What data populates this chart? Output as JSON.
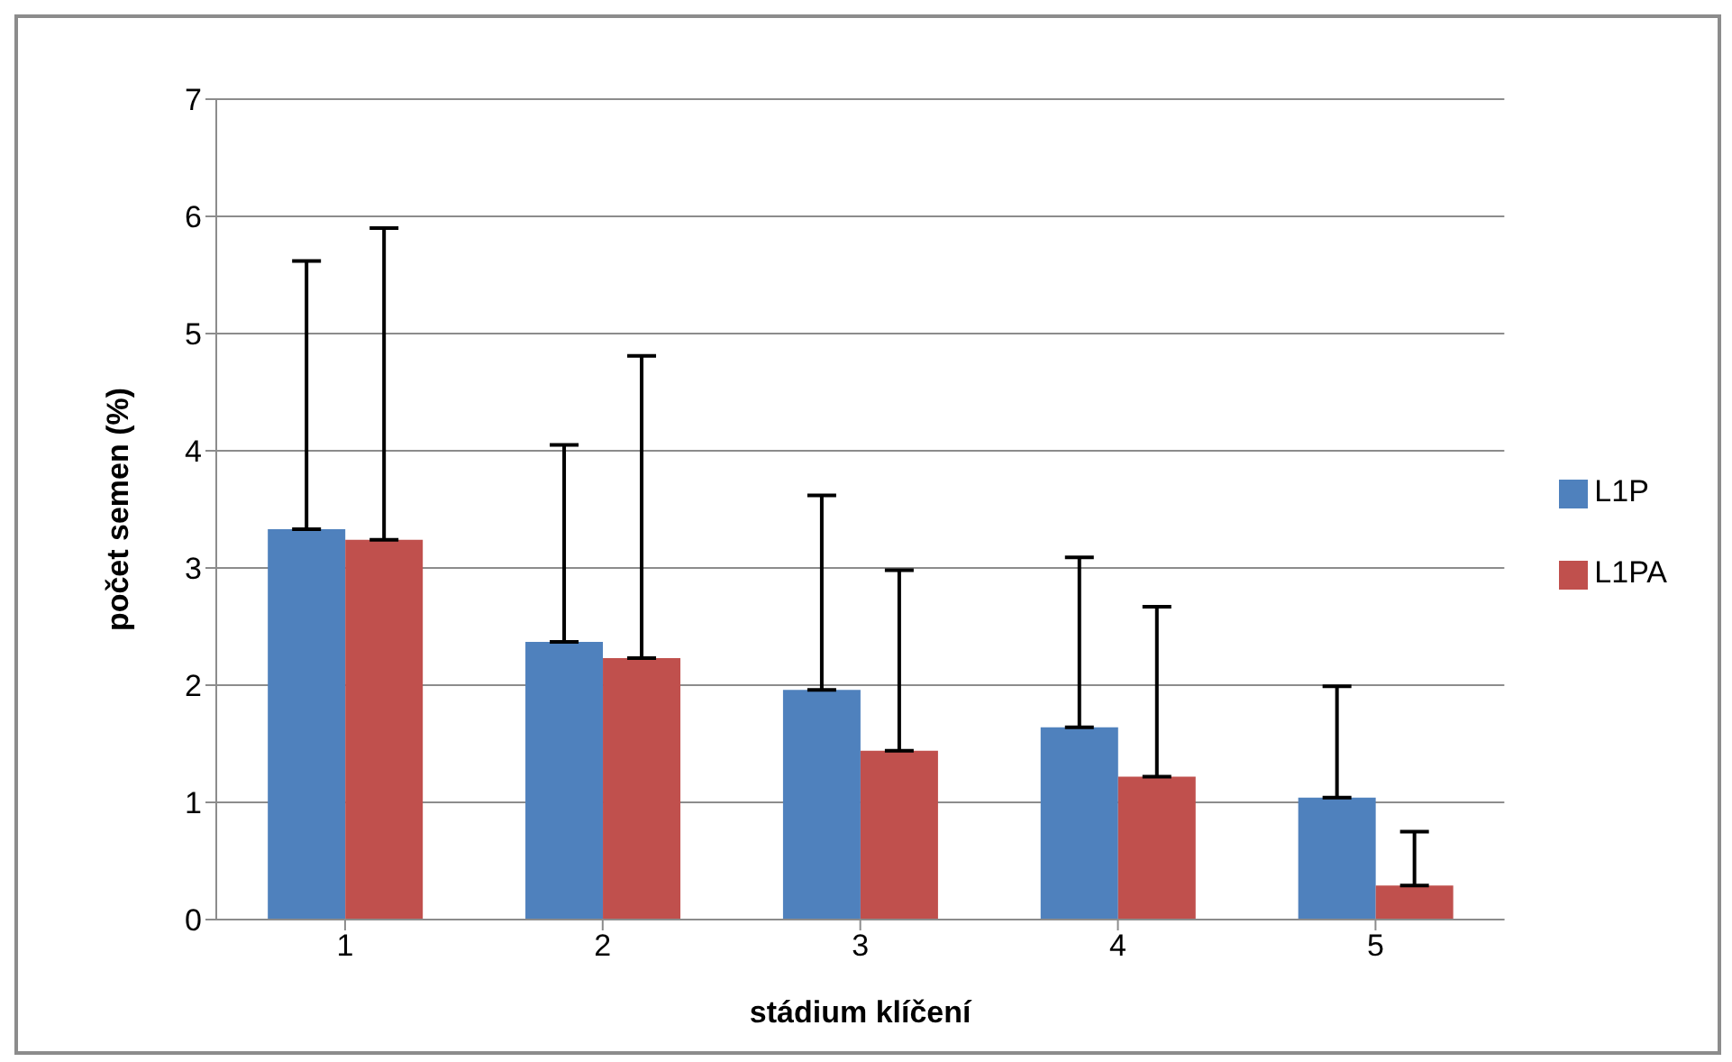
{
  "chart_data": {
    "type": "bar",
    "xlabel": "stádium klíčení",
    "ylabel": "počet semen (%)",
    "categories": [
      "1",
      "2",
      "3",
      "4",
      "5"
    ],
    "series": [
      {
        "name": "L1P",
        "color": "#4f81bd",
        "values": [
          3.33,
          2.37,
          1.96,
          1.64,
          1.04
        ],
        "errors": [
          [
            3.33,
            5.62
          ],
          [
            2.37,
            4.05
          ],
          [
            1.96,
            3.62
          ],
          [
            1.64,
            3.09
          ],
          [
            1.04,
            1.99
          ]
        ]
      },
      {
        "name": "L1PA",
        "color": "#c0504d",
        "values": [
          3.24,
          2.23,
          1.44,
          1.22,
          0.29
        ],
        "errors": [
          [
            3.24,
            5.9
          ],
          [
            2.23,
            4.81
          ],
          [
            1.44,
            2.98
          ],
          [
            1.22,
            2.67
          ],
          [
            0.29,
            0.75
          ]
        ]
      }
    ],
    "ylim": [
      0,
      7
    ],
    "yticks": [
      0,
      1,
      2,
      3,
      4,
      5,
      6,
      7
    ],
    "grid": "y",
    "legend": "right"
  }
}
